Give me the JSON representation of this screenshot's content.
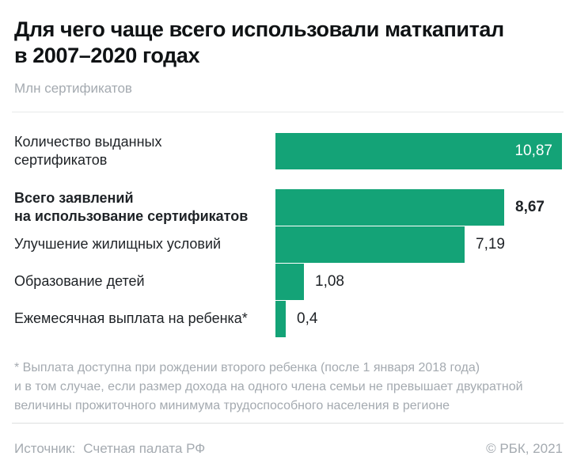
{
  "header": {
    "title": "Для чего чаще всего использовали маткапитал\nв 2007–2020 годах",
    "unit_label": "Млн сертификатов"
  },
  "chart_data": {
    "type": "bar",
    "orientation": "horizontal",
    "title": "Для чего чаще всего использовали маткапитал в 2007–2020 годах",
    "xlabel": "",
    "ylabel": "Млн сертификатов",
    "xlim": [
      0,
      10.87
    ],
    "grid": false,
    "legend": false,
    "bar_color": "#14a377",
    "categories": [
      "Количество выданных сертификатов",
      "Всего заявлений на использование сертификатов",
      "Улучшение жилищных условий",
      "Образование детей",
      "Ежемесячная выплата на ребенка*"
    ],
    "values": [
      10.87,
      8.67,
      7.19,
      1.08,
      0.4
    ],
    "value_labels": [
      "10,87",
      "8,67",
      "7,19",
      "1,08",
      "0,4"
    ],
    "bars": [
      {
        "label": "Количество выданных\nсертификатов",
        "value": 10.87,
        "value_label": "10,87",
        "emphasis": false,
        "value_position": "inside"
      },
      {
        "label": "Всего заявлений\nна использование сертификатов",
        "value": 8.67,
        "value_label": "8,67",
        "emphasis": true,
        "value_position": "outside"
      },
      {
        "label": "Улучшение жилищных условий",
        "value": 7.19,
        "value_label": "7,19",
        "emphasis": false,
        "value_position": "outside"
      },
      {
        "label": "Образование детей",
        "value": 1.08,
        "value_label": "1,08",
        "emphasis": false,
        "value_position": "outside"
      },
      {
        "label": "Ежемесячная выплата на ребенка*",
        "value": 0.4,
        "value_label": "0,4",
        "emphasis": false,
        "value_position": "outside"
      }
    ]
  },
  "footnote": "* Выплата доступна при рождении второго ребенка (после 1 января 2018 года)\nи в том случае, если размер дохода на одного члена семьи не превышает двукратной\nвеличины прожиточного минимума трудоспособного населения в регионе",
  "footer": {
    "source_label": "Источник:",
    "source_value": "Счетная палата РФ",
    "copyright": "© РБК, 2021"
  },
  "colors": {
    "bar_green": "#14a377",
    "title_text": "#0f1214",
    "body_text": "#1e2226",
    "muted_text": "#a4aab0",
    "divider": "#e8e9ea"
  }
}
